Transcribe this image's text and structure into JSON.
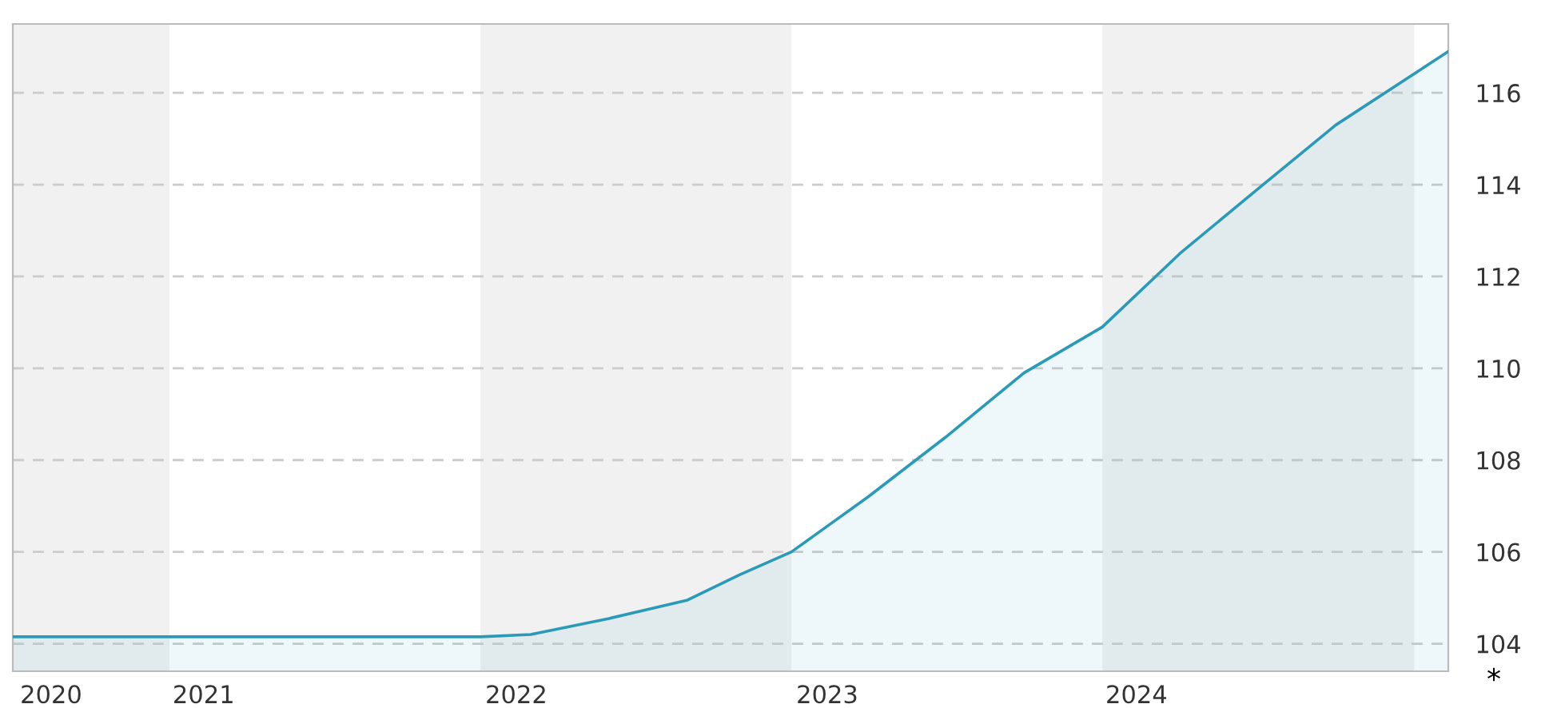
{
  "chart_data": {
    "type": "area",
    "x": [
      "2020-07-01",
      "2021-01-01",
      "2021-07-01",
      "2022-01-01",
      "2022-03-01",
      "2022-06-01",
      "2022-09-01",
      "2022-11-01",
      "2023-01-01",
      "2023-04-01",
      "2023-07-01",
      "2023-10-01",
      "2024-01-01",
      "2024-04-01",
      "2024-07-01",
      "2024-10-01",
      "2025-02-10"
    ],
    "series": [
      {
        "color": "#2a9ab8",
        "values": [
          104.15,
          104.15,
          104.15,
          104.15,
          104.2,
          104.55,
          104.95,
          105.5,
          106.0,
          107.2,
          108.5,
          109.9,
          110.9,
          112.5,
          113.9,
          115.3,
          116.9
        ]
      }
    ],
    "xlim": [
      "2020-07-01",
      "2025-02-10"
    ],
    "xticks": [
      {
        "value": "2020-08-15",
        "label": "2020"
      },
      {
        "value": "2021-02-10",
        "label": "2021"
      },
      {
        "value": "2022-02-12",
        "label": "2022"
      },
      {
        "value": "2023-02-12",
        "label": "2023"
      },
      {
        "value": "2024-02-10",
        "label": "2024"
      }
    ],
    "ylim": [
      103.4,
      117.5
    ],
    "yticks": [
      104,
      106,
      108,
      110,
      112,
      114,
      116
    ],
    "bands": [
      {
        "axis": "x",
        "from": "2020-07-01",
        "to": "2021-01-01",
        "color": "#f1f1f1"
      },
      {
        "axis": "x",
        "from": "2022-01-01",
        "to": "2023-01-01",
        "color": "#f1f1f1"
      },
      {
        "axis": "x",
        "from": "2024-01-01",
        "to": "2025-01-01",
        "color": "#f1f1f1"
      }
    ],
    "grid": "y",
    "legend": false,
    "annotations": [
      "*"
    ]
  }
}
